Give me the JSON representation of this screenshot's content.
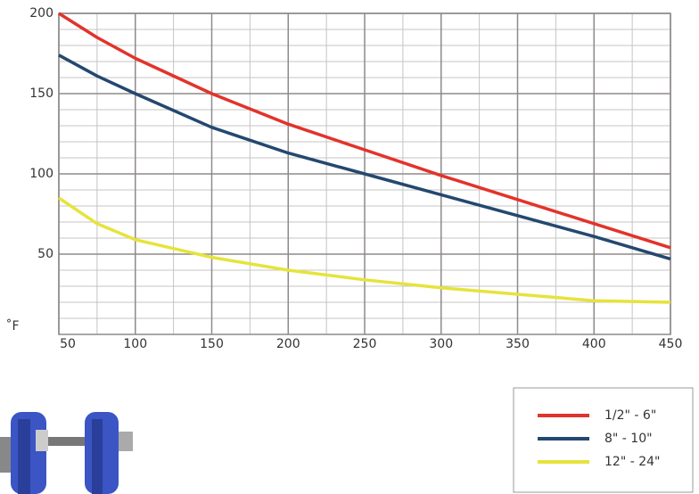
{
  "chart_data": {
    "type": "line",
    "y_label": "˚F",
    "x": [
      50,
      75,
      100,
      150,
      200,
      250,
      300,
      350,
      400,
      450
    ],
    "series": [
      {
        "name": "1/2\" - 6\"",
        "color": "#e2332b",
        "values": [
          200,
          185,
          172,
          150,
          131,
          115,
          99,
          84,
          69,
          54
        ]
      },
      {
        "name": "8\" - 10\"",
        "color": "#24486f",
        "values": [
          174,
          161,
          150,
          129,
          113,
          100,
          87,
          74,
          61,
          47
        ]
      },
      {
        "name": "12\" - 24\"",
        "color": "#e6e33c",
        "values": [
          85,
          69,
          59,
          48,
          40,
          34,
          29,
          25,
          21,
          20
        ]
      }
    ],
    "xlim": [
      50,
      450
    ],
    "ylim": [
      0,
      200
    ],
    "xticks": [
      50,
      100,
      150,
      200,
      250,
      300,
      350,
      400,
      450
    ],
    "yticks": [
      50,
      100,
      150,
      200
    ],
    "x_minor_grid": [
      75,
      125,
      175,
      225,
      275,
      325,
      375,
      425
    ],
    "y_minor_grid": [
      10,
      20,
      30,
      40,
      60,
      70,
      80,
      90,
      110,
      120,
      130,
      140,
      160,
      170,
      180,
      190
    ],
    "grid": true
  }
}
